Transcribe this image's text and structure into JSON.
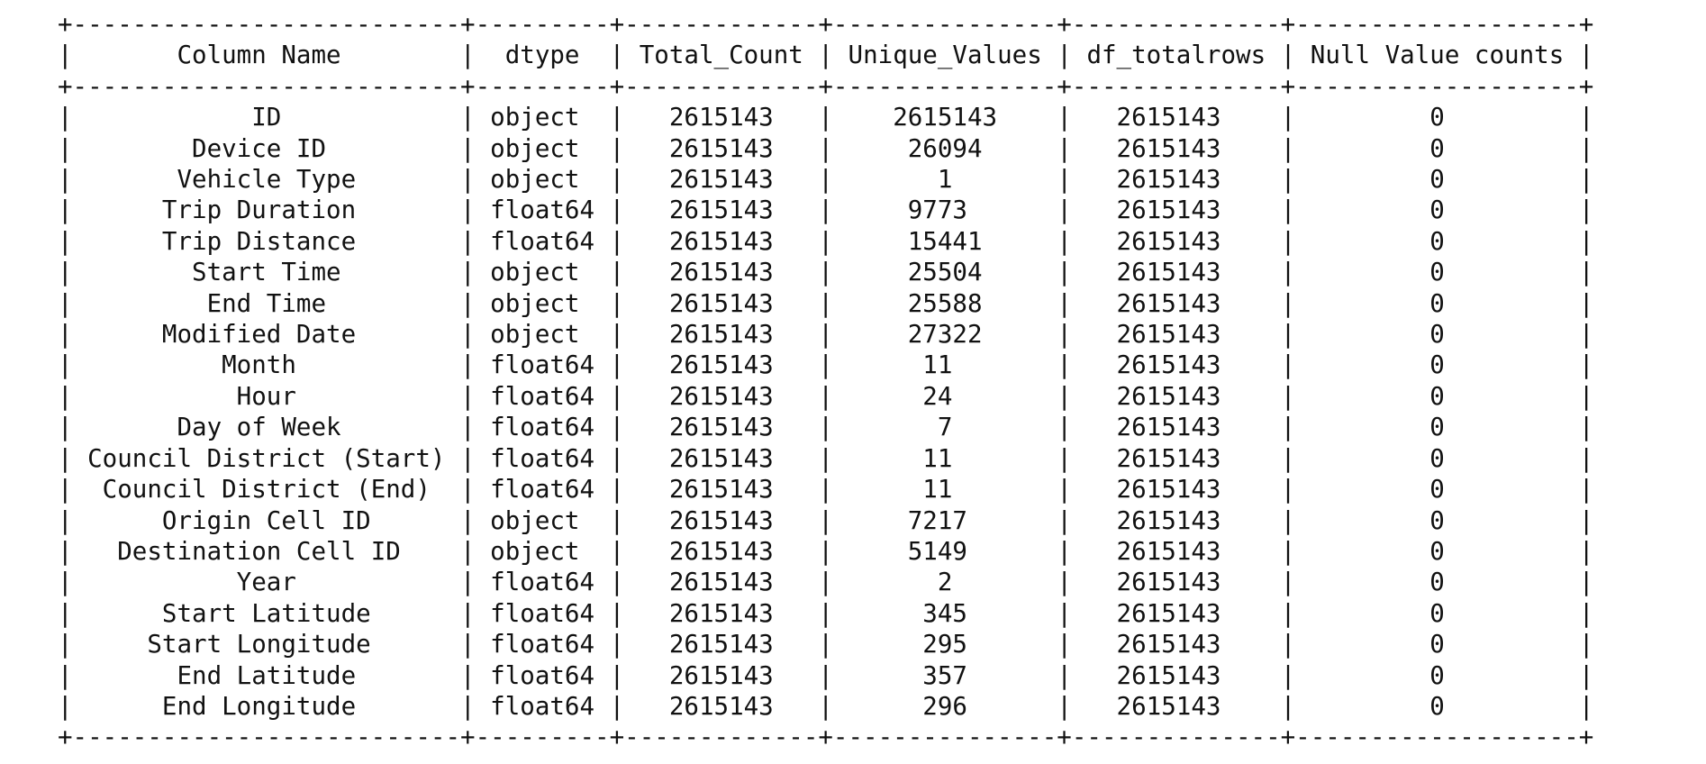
{
  "table": {
    "headers": [
      "Column Name",
      "dtype",
      "Total_Count",
      "Unique_Values",
      "df_totalrows",
      "Null Value counts"
    ],
    "rows": [
      [
        "ID",
        "object",
        "2615143",
        "2615143",
        "2615143",
        "0"
      ],
      [
        "Device ID",
        "object",
        "2615143",
        "26094",
        "2615143",
        "0"
      ],
      [
        "Vehicle Type",
        "object",
        "2615143",
        "1",
        "2615143",
        "0"
      ],
      [
        "Trip Duration",
        "float64",
        "2615143",
        "9773",
        "2615143",
        "0"
      ],
      [
        "Trip Distance",
        "float64",
        "2615143",
        "15441",
        "2615143",
        "0"
      ],
      [
        "Start Time",
        "object",
        "2615143",
        "25504",
        "2615143",
        "0"
      ],
      [
        "End Time",
        "object",
        "2615143",
        "25588",
        "2615143",
        "0"
      ],
      [
        "Modified Date",
        "object",
        "2615143",
        "27322",
        "2615143",
        "0"
      ],
      [
        "Month",
        "float64",
        "2615143",
        "11",
        "2615143",
        "0"
      ],
      [
        "Hour",
        "float64",
        "2615143",
        "24",
        "2615143",
        "0"
      ],
      [
        "Day of Week",
        "float64",
        "2615143",
        "7",
        "2615143",
        "0"
      ],
      [
        "Council District (Start)",
        "float64",
        "2615143",
        "11",
        "2615143",
        "0"
      ],
      [
        "Council District (End)",
        "float64",
        "2615143",
        "11",
        "2615143",
        "0"
      ],
      [
        "Origin Cell ID",
        "object",
        "2615143",
        "7217",
        "2615143",
        "0"
      ],
      [
        "Destination Cell ID",
        "object",
        "2615143",
        "5149",
        "2615143",
        "0"
      ],
      [
        "Year",
        "float64",
        "2615143",
        "2",
        "2615143",
        "0"
      ],
      [
        "Start Latitude",
        "float64",
        "2615143",
        "345",
        "2615143",
        "0"
      ],
      [
        "Start Longitude",
        "float64",
        "2615143",
        "295",
        "2615143",
        "0"
      ],
      [
        "End Latitude",
        "float64",
        "2615143",
        "357",
        "2615143",
        "0"
      ],
      [
        "End Longitude",
        "float64",
        "2615143",
        "296",
        "2615143",
        "0"
      ]
    ]
  }
}
